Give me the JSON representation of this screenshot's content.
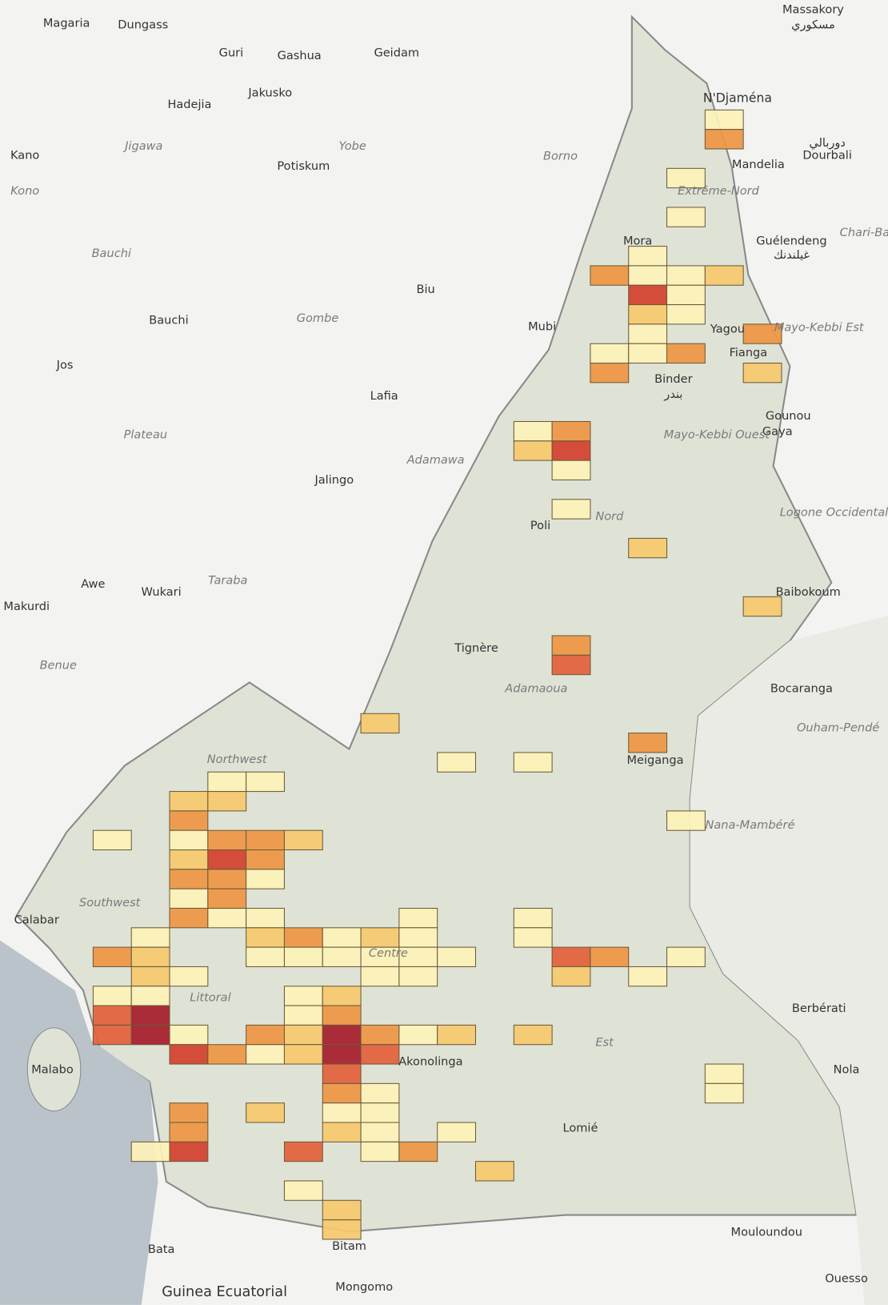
{
  "levels": [
    "#fdf2b7",
    "#f6c96e",
    "#ee9643",
    "#e3603a",
    "#d33f2c",
    "#a51c2b"
  ],
  "cells": [
    [
      16,
      0,
      1
    ],
    [
      16,
      1,
      3
    ],
    [
      15,
      3,
      1
    ],
    [
      15,
      5,
      1
    ],
    [
      14,
      7,
      1
    ],
    [
      13,
      8,
      3
    ],
    [
      14,
      8,
      1
    ],
    [
      15,
      8,
      1
    ],
    [
      16,
      8,
      2
    ],
    [
      14,
      9,
      5
    ],
    [
      15,
      9,
      1
    ],
    [
      14,
      10,
      2
    ],
    [
      15,
      10,
      1
    ],
    [
      14,
      11,
      1
    ],
    [
      17,
      11,
      3
    ],
    [
      13,
      12,
      1
    ],
    [
      14,
      12,
      1
    ],
    [
      15,
      12,
      3
    ],
    [
      13,
      13,
      3
    ],
    [
      17,
      13,
      2
    ],
    [
      11,
      16,
      1
    ],
    [
      12,
      16,
      3
    ],
    [
      11,
      17,
      2
    ],
    [
      12,
      17,
      5
    ],
    [
      12,
      18,
      1
    ],
    [
      12,
      20,
      1
    ],
    [
      14,
      22,
      2
    ],
    [
      17,
      25,
      2
    ],
    [
      12,
      27,
      3
    ],
    [
      12,
      28,
      4
    ],
    [
      7,
      31,
      2
    ],
    [
      14,
      32,
      3
    ],
    [
      9,
      33,
      1
    ],
    [
      11,
      33,
      1
    ],
    [
      3,
      34,
      1
    ],
    [
      4,
      34,
      1
    ],
    [
      2,
      35,
      2
    ],
    [
      3,
      35,
      2
    ],
    [
      2,
      36,
      3
    ],
    [
      15,
      36,
      1
    ],
    [
      0,
      37,
      1
    ],
    [
      2,
      37,
      1
    ],
    [
      3,
      37,
      3
    ],
    [
      4,
      37,
      3
    ],
    [
      5,
      37,
      2
    ],
    [
      2,
      38,
      2
    ],
    [
      3,
      38,
      5
    ],
    [
      4,
      38,
      3
    ],
    [
      2,
      39,
      3
    ],
    [
      3,
      39,
      3
    ],
    [
      4,
      39,
      1
    ],
    [
      2,
      40,
      1
    ],
    [
      3,
      40,
      3
    ],
    [
      2,
      41,
      3
    ],
    [
      3,
      41,
      1
    ],
    [
      4,
      41,
      1
    ],
    [
      8,
      41,
      1
    ],
    [
      11,
      41,
      1
    ],
    [
      1,
      42,
      1
    ],
    [
      4,
      42,
      2
    ],
    [
      5,
      42,
      3
    ],
    [
      6,
      42,
      1
    ],
    [
      7,
      42,
      2
    ],
    [
      8,
      42,
      1
    ],
    [
      11,
      42,
      1
    ],
    [
      0,
      43,
      3
    ],
    [
      1,
      43,
      2
    ],
    [
      4,
      43,
      1
    ],
    [
      5,
      43,
      1
    ],
    [
      6,
      43,
      1
    ],
    [
      7,
      43,
      1
    ],
    [
      8,
      43,
      1
    ],
    [
      9,
      43,
      1
    ],
    [
      12,
      43,
      4
    ],
    [
      13,
      43,
      3
    ],
    [
      15,
      43,
      1
    ],
    [
      1,
      44,
      2
    ],
    [
      2,
      44,
      1
    ],
    [
      7,
      44,
      1
    ],
    [
      8,
      44,
      1
    ],
    [
      12,
      44,
      2
    ],
    [
      14,
      44,
      1
    ],
    [
      0,
      45,
      1
    ],
    [
      1,
      45,
      1
    ],
    [
      5,
      45,
      1
    ],
    [
      6,
      45,
      2
    ],
    [
      0,
      46,
      4
    ],
    [
      1,
      46,
      6
    ],
    [
      5,
      46,
      1
    ],
    [
      6,
      46,
      3
    ],
    [
      0,
      47,
      4
    ],
    [
      1,
      47,
      6
    ],
    [
      2,
      47,
      1
    ],
    [
      4,
      47,
      3
    ],
    [
      5,
      47,
      2
    ],
    [
      6,
      47,
      6
    ],
    [
      7,
      47,
      3
    ],
    [
      8,
      47,
      1
    ],
    [
      9,
      47,
      2
    ],
    [
      11,
      47,
      2
    ],
    [
      2,
      48,
      5
    ],
    [
      3,
      48,
      3
    ],
    [
      4,
      48,
      1
    ],
    [
      5,
      48,
      2
    ],
    [
      6,
      48,
      6
    ],
    [
      7,
      48,
      4
    ],
    [
      6,
      49,
      4
    ],
    [
      16,
      49,
      1
    ],
    [
      6,
      50,
      3
    ],
    [
      7,
      50,
      1
    ],
    [
      16,
      50,
      1
    ],
    [
      2,
      51,
      3
    ],
    [
      4,
      51,
      2
    ],
    [
      6,
      51,
      1
    ],
    [
      7,
      51,
      1
    ],
    [
      2,
      52,
      3
    ],
    [
      6,
      52,
      2
    ],
    [
      7,
      52,
      1
    ],
    [
      9,
      52,
      1
    ],
    [
      1,
      53,
      1
    ],
    [
      2,
      53,
      5
    ],
    [
      5,
      53,
      4
    ],
    [
      7,
      53,
      1
    ],
    [
      8,
      53,
      3
    ],
    [
      10,
      54,
      2
    ],
    [
      5,
      55,
      1
    ],
    [
      6,
      56,
      2
    ],
    [
      6,
      57,
      2
    ]
  ],
  "cities": [
    "Magaria",
    "Dungass",
    "Guri",
    "Gashua",
    "Geidam",
    "Massakory",
    "مسكوري",
    "N'Djaména",
    "Hadejia",
    "Jakusko",
    "Kano",
    "Potiskum",
    "دوربالي",
    "Dourbali",
    "Mandelia",
    "Mora",
    "Guélendeng",
    "غيلندنك",
    "Biu",
    "Bauchi",
    "Mubi",
    "Yagou",
    "Fianga",
    "Jos",
    "Binder",
    "بندر",
    "Lafia",
    "Gounou",
    "Gaya",
    "Jalingo",
    "Poli",
    "Baibokoum",
    "Awe",
    "Wukari",
    "Makurdi",
    "Tignère",
    "Bocaranga",
    "Meiganga",
    "Calabar",
    "Berbérati",
    "Akonolinga",
    "Malabo",
    "Nola",
    "Lomié",
    "Bata",
    "Mouloundou",
    "Bitam",
    "Ouesso",
    "Mongomo",
    "Guinea Ecuatorial"
  ],
  "regions": [
    "Jigawa",
    "Yobe",
    "Borno",
    "Kono",
    "Bauchi",
    "Gombe",
    "Plateau",
    "Adamawa",
    "Taraba",
    "Benue",
    "Mayo-Kebbi Est",
    "Mayo-Kebbi Ouest",
    "Logone Occidental",
    "Nord",
    "Adamaoua",
    "Ouham-Pendé",
    "Northwest",
    "Nana-Mambéré",
    "Southwest",
    "Centre",
    "Littoral",
    "Est",
    "Chari-Ba",
    "Extrême-Nord"
  ]
}
